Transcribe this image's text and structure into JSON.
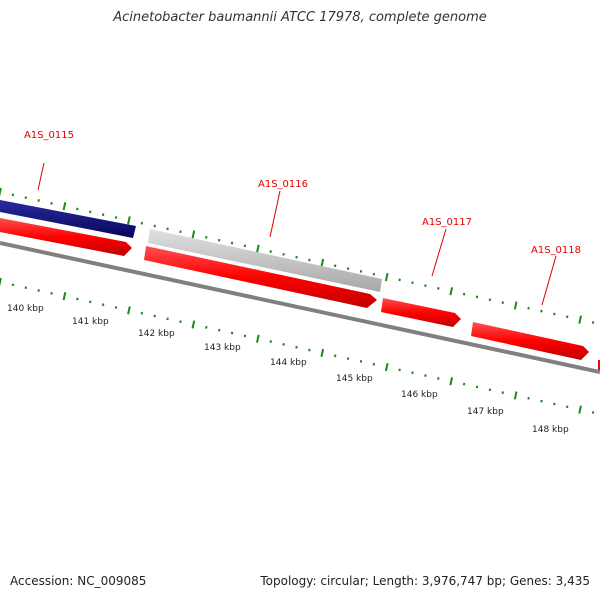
{
  "title": "Acinetobacter baumannii ATCC 17978, complete genome",
  "footer": {
    "accession": "Accession: NC_009085",
    "stats": "Topology: circular; Length: 3,976,747 bp; Genes: 3,435"
  },
  "colors": {
    "gene_forward": "#ff0000",
    "gene_highlight": "#0a0a80",
    "gene_other": "#c0c0c0",
    "backbone": "#808080",
    "ticks": "#1a8a1a",
    "label": "#e00000"
  },
  "gene_labels": [
    "A1S_0115",
    "A1S_0116",
    "A1S_0117",
    "A1S_0118"
  ],
  "kbp_labels": [
    "140 kbp",
    "141 kbp",
    "142 kbp",
    "143 kbp",
    "144 kbp",
    "145 kbp",
    "146 kbp",
    "147 kbp",
    "148 kbp"
  ]
}
